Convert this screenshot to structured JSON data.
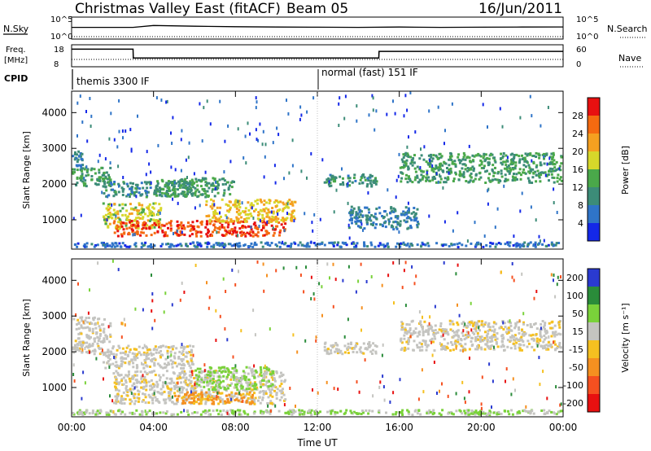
{
  "header": {
    "title": "Christmas Valley East (fitACF)",
    "beam": "Beam 05",
    "date": "16/Jun/2011"
  },
  "strip_labels": {
    "nsky": "N.Sky",
    "nsearch": "N.Search",
    "freq": "Freq.",
    "freq_unit": "[MHz]",
    "nave": "Nave",
    "cpid": "CPID",
    "nsky_ticks": [
      "10^5",
      "10^0"
    ],
    "nsearch_ticks": [
      "10^5",
      "10^0"
    ],
    "freq_ticks": [
      "18",
      "8"
    ],
    "nave_ticks": [
      "60",
      "0"
    ]
  },
  "cpid_segments": [
    {
      "start_hour": 0,
      "end_hour": 12,
      "label": "themis 3300 IF"
    },
    {
      "start_hour": 12,
      "end_hour": 24,
      "label": "normal (fast) 151 IF"
    }
  ],
  "colorbars": {
    "power": {
      "label": "Power [dB]",
      "ticks": [
        "4",
        "8",
        "12",
        "16",
        "20",
        "24",
        "28"
      ],
      "colors": [
        "#1428e8",
        "#2f74c8",
        "#3c8c78",
        "#4aa84a",
        "#d7d72a",
        "#f5a020",
        "#f56a10",
        "#e81010"
      ]
    },
    "velocity": {
      "label": "Velocity [m s⁻¹]",
      "ticks": [
        "200",
        "100",
        "50",
        "15",
        "-15",
        "-50",
        "-100",
        "-200"
      ],
      "colors": [
        "#2a3ad0",
        "#2a8c3a",
        "#7ad23a",
        "#c4c4c0",
        "#f5c020",
        "#f59020",
        "#f55020",
        "#e81010"
      ]
    }
  },
  "chart_data": [
    {
      "type": "line",
      "title": "N.Sky / N.Search",
      "xlabel": "",
      "series": [
        {
          "name": "N.Sky",
          "x": [
            0,
            3,
            4,
            6,
            8,
            10,
            12,
            14,
            16,
            18,
            20,
            22,
            24
          ],
          "values": [
            1000,
            1000,
            3000,
            2000,
            1500,
            1200,
            1100,
            1000,
            1200,
            1000,
            1100,
            1200,
            1300
          ]
        },
        {
          "name": "N.Search",
          "x": [
            0,
            3,
            6,
            9,
            12,
            15,
            18,
            21,
            24
          ],
          "values": [
            1,
            1,
            1,
            1,
            1,
            1,
            1,
            1,
            1
          ]
        }
      ],
      "ylim": [
        1,
        100000
      ],
      "scale": "log"
    },
    {
      "type": "line",
      "title": "Freq. / Nave",
      "series": [
        {
          "name": "Freq. [MHz]",
          "x": [
            0,
            0.01,
            3,
            3.01,
            12,
            15,
            15.01,
            24
          ],
          "values": [
            16,
            16,
            16,
            12,
            12,
            12,
            15,
            15
          ]
        },
        {
          "name": "Nave",
          "x": [
            0,
            3,
            12,
            24
          ],
          "values": [
            30,
            30,
            30,
            30
          ]
        }
      ],
      "ylim": [
        8,
        18
      ]
    },
    {
      "type": "heatmap",
      "title": "",
      "xlabel": "",
      "ylabel": "Slant Range [km]",
      "x_ticks": [
        "00:00",
        "04:00",
        "08:00",
        "12:00",
        "16:00",
        "20:00",
        "00:00"
      ],
      "y_ticks": [
        1000,
        2000,
        3000,
        4000
      ],
      "xlim_hours": [
        0,
        24
      ],
      "ylim": [
        180,
        4600
      ],
      "quantity": "Power [dB]",
      "regions": [
        {
          "x0": 0,
          "x1": 0.6,
          "y0": 2300,
          "y1": 3000,
          "value": 8
        },
        {
          "x0": 0,
          "x1": 2,
          "y0": 1900,
          "y1": 2500,
          "value": 12
        },
        {
          "x0": 1.5,
          "x1": 6,
          "y0": 1600,
          "y1": 2100,
          "value": 10
        },
        {
          "x0": 1.5,
          "x1": 4.5,
          "y0": 700,
          "y1": 1500,
          "value": 18
        },
        {
          "x0": 2,
          "x1": 10.5,
          "y0": 500,
          "y1": 1000,
          "value": 28
        },
        {
          "x0": 6.5,
          "x1": 11,
          "y0": 900,
          "y1": 1600,
          "value": 20
        },
        {
          "x0": 4,
          "x1": 8,
          "y0": 1600,
          "y1": 2200,
          "value": 12
        },
        {
          "x0": 12.3,
          "x1": 15,
          "y0": 1900,
          "y1": 2300,
          "value": 10
        },
        {
          "x0": 16,
          "x1": 24,
          "y0": 2000,
          "y1": 2900,
          "value": 12
        },
        {
          "x0": 13.5,
          "x1": 17,
          "y0": 700,
          "y1": 1400,
          "value": 8
        },
        {
          "x0": 0,
          "x1": 24,
          "y0": 200,
          "y1": 400,
          "value": 6
        }
      ]
    },
    {
      "type": "heatmap",
      "title": "",
      "xlabel": "Time UT",
      "ylabel": "Slant Range [km]",
      "x_ticks": [
        "00:00",
        "04:00",
        "08:00",
        "12:00",
        "16:00",
        "20:00",
        "00:00"
      ],
      "y_ticks": [
        1000,
        2000,
        3000,
        4000
      ],
      "xlim_hours": [
        0,
        24
      ],
      "ylim": [
        180,
        4600
      ],
      "quantity": "Velocity [m s⁻¹]",
      "regions": [
        {
          "x0": 0,
          "x1": 2,
          "y0": 1900,
          "y1": 3000,
          "value": 0
        },
        {
          "x0": 1.5,
          "x1": 6,
          "y0": 1500,
          "y1": 2200,
          "value": 0
        },
        {
          "x0": 2,
          "x1": 10.5,
          "y0": 500,
          "y1": 1500,
          "value": 0
        },
        {
          "x0": 6,
          "x1": 10,
          "y0": 900,
          "y1": 1600,
          "value": 40
        },
        {
          "x0": 5,
          "x1": 9,
          "y0": 500,
          "y1": 900,
          "value": -40
        },
        {
          "x0": 12.3,
          "x1": 15,
          "y0": 1900,
          "y1": 2300,
          "value": 0
        },
        {
          "x0": 16,
          "x1": 24,
          "y0": 2000,
          "y1": 2900,
          "value": 0
        },
        {
          "x0": 0,
          "x1": 24,
          "y0": 200,
          "y1": 400,
          "value": 30
        }
      ]
    }
  ]
}
